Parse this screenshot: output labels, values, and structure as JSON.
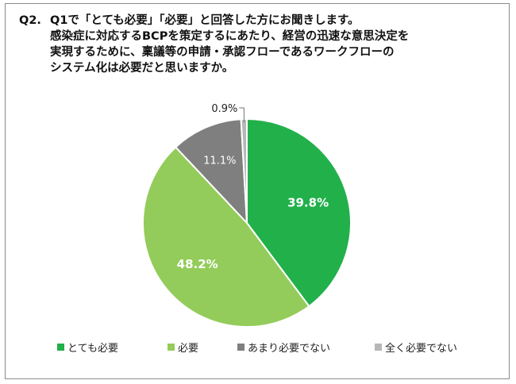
{
  "title": {
    "number": "Q2.",
    "lines": [
      "Q1で「とても必要」「必要」と回答した方にお聞きします。",
      "感染症に対応するBCPを策定するにあたり、経営の迅速な意思決定を",
      "実現するために、稟議等の申請・承認フローであるワークフローの",
      "システム化は必要だと思いますか。"
    ]
  },
  "chart_data": {
    "type": "pie",
    "title": "Q1で「とても必要」「必要」と回答した方にお聞きします。感染症に対応するBCPを策定するにあたり、経営の迅速な意思決定を実現するために、稟議等の申請・承認フローであるワークフローのシステム化は必要だと思いますか。",
    "start": "12 o'clock, clockwise",
    "legend_position": "bottom",
    "slices": [
      {
        "name": "とても必要",
        "value": 39.8,
        "label": "39.8%",
        "color": "#22b04b"
      },
      {
        "name": "必要",
        "value": 48.2,
        "label": "48.2%",
        "color": "#93cc5a"
      },
      {
        "name": "あまり必要でない",
        "value": 11.1,
        "label": "11.1%",
        "color": "#7f7f7f"
      },
      {
        "name": "全く必要でない",
        "value": 0.9,
        "label": "0.9%",
        "color": "#b7b7b7"
      }
    ]
  }
}
